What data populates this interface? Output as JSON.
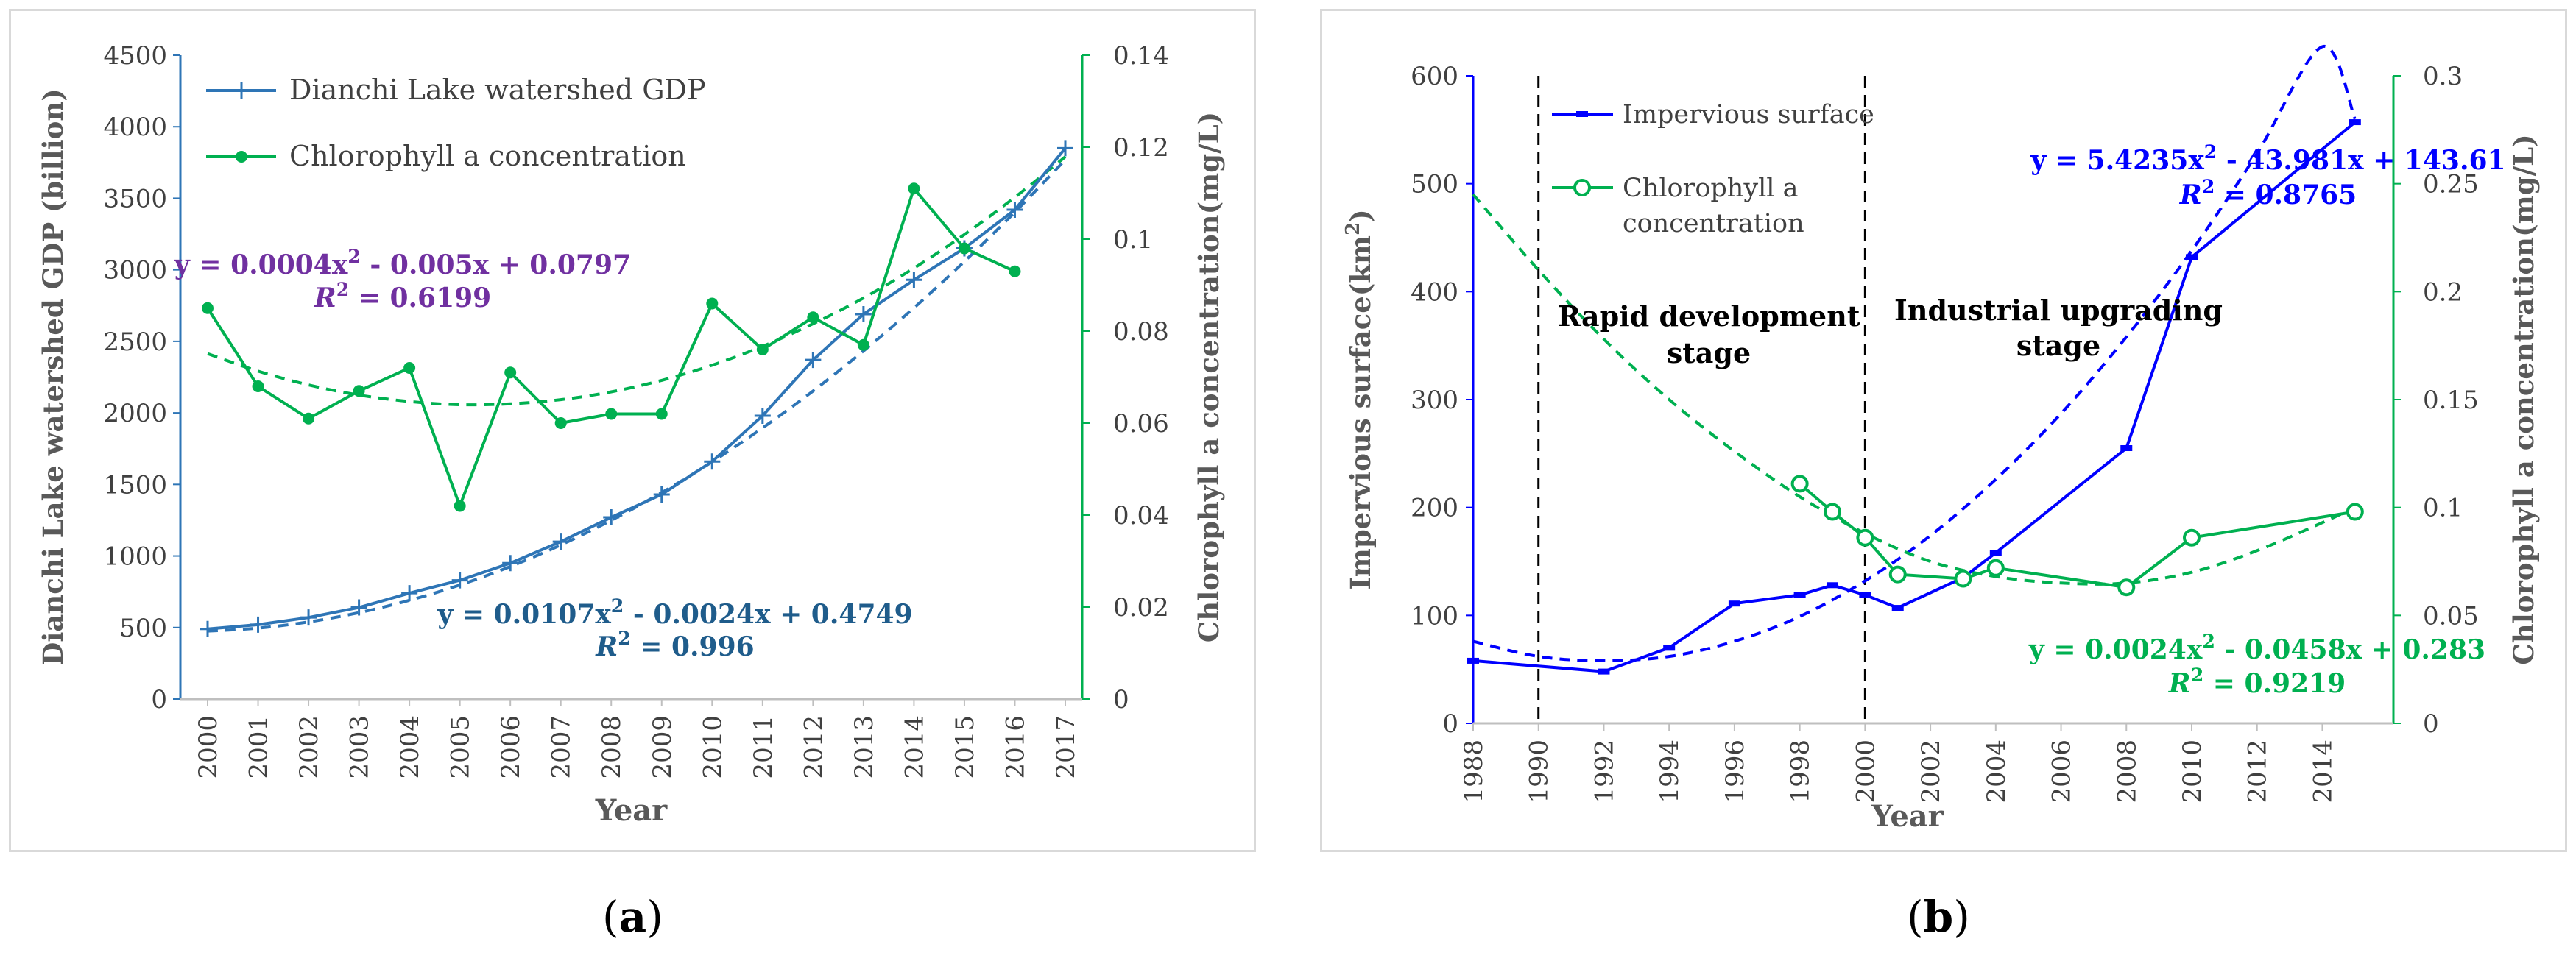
{
  "charts": [
    {
      "type": "line",
      "panel_label": "a",
      "xlabel": "Year",
      "ylabel_left": "Dianchi Lake watershed GDP (billion)",
      "ylabel_right": "Chlorophyll  a concentration(mg/L)",
      "x_ticks": [
        "2000",
        "2001",
        "2002",
        "2003",
        "2004",
        "2005",
        "2006",
        "2007",
        "2008",
        "2009",
        "2010",
        "2011",
        "2012",
        "2013",
        "2014",
        "2015",
        "2016",
        "2017"
      ],
      "y_left_ticks": [
        "0",
        "500",
        "1000",
        "1500",
        "2000",
        "2500",
        "3000",
        "3500",
        "4000",
        "4500"
      ],
      "y_right_ticks": [
        "0",
        "0.02",
        "0.04",
        "0.06",
        "0.08",
        "0.1",
        "0.12",
        "0.14"
      ],
      "legend": [
        "Dianchi Lake watershed GDP",
        "Chlorophyll a concentration"
      ],
      "annotations": [
        {
          "eq": "y = 0.0004x² - 0.005x + 0.0797",
          "r2": "R² = 0.6199",
          "color": "#7030a0"
        },
        {
          "eq": "y = 0.0107x² - 0.0024x + 0.4749",
          "r2": "R² = 0.996",
          "color": "#1f5c8b"
        }
      ]
    },
    {
      "type": "line",
      "panel_label": "b",
      "xlabel": "Year",
      "ylabel_left": "Impervious surface(km²)",
      "ylabel_right": "Chlorophyll a concentration(mg/L)",
      "x_ticks": [
        "1988",
        "1990",
        "1992",
        "1994",
        "1996",
        "1998",
        "2000",
        "2002",
        "2004",
        "2006",
        "2008",
        "2010",
        "2012",
        "2014"
      ],
      "y_left_ticks": [
        "0",
        "100",
        "200",
        "300",
        "400",
        "500",
        "600"
      ],
      "y_right_ticks": [
        "0",
        "0.05",
        "0.1",
        "0.15",
        "0.2",
        "0.25",
        "0.3"
      ],
      "legend": [
        "Impervious surface",
        "Chlorophyll a",
        "concentration"
      ],
      "stage_labels": [
        {
          "line1": "Rapid development",
          "line2": "stage"
        },
        {
          "line1": "Industrial upgrading",
          "line2": "stage"
        }
      ],
      "annotations": [
        {
          "eq": "y = 5.4235x² - 43.981x + 143.61",
          "r2": "R² = 0.8765",
          "color": "#0000ff"
        },
        {
          "eq": "y = 0.0024x² - 0.0458x + 0.283",
          "r2": "R² = 0.9219",
          "color": "#00b050"
        }
      ]
    }
  ],
  "chart_data": [
    {
      "type": "line",
      "title": "",
      "xlabel": "Year",
      "ylabel": "Dianchi Lake watershed GDP (billion)",
      "y2label": "Chlorophyll  a concentration(mg/L)",
      "ylim": [
        0,
        4500
      ],
      "y2lim": [
        0,
        0.14
      ],
      "x": [
        2000,
        2001,
        2002,
        2003,
        2004,
        2005,
        2006,
        2007,
        2008,
        2009,
        2010,
        2011,
        2012,
        2013,
        2014,
        2015,
        2016,
        2017
      ],
      "series": [
        {
          "name": "Dianchi Lake watershed GDP",
          "axis": "left",
          "color": "#2e75b6",
          "marker": "plus",
          "x": [
            2000,
            2001,
            2002,
            2003,
            2004,
            2005,
            2006,
            2007,
            2008,
            2009,
            2010,
            2011,
            2012,
            2013,
            2014,
            2015,
            2016,
            2017
          ],
          "values": [
            490,
            520,
            570,
            640,
            740,
            830,
            950,
            1100,
            1270,
            1430,
            1660,
            1980,
            2370,
            2690,
            2930,
            3150,
            3420,
            3850
          ]
        },
        {
          "name": "Chlorophyll a concentration",
          "axis": "right",
          "color": "#00b050",
          "marker": "circle",
          "x": [
            2000,
            2001,
            2002,
            2003,
            2004,
            2005,
            2006,
            2007,
            2008,
            2009,
            2010,
            2011,
            2012,
            2013,
            2014,
            2015,
            2016
          ],
          "values": [
            0.085,
            0.068,
            0.061,
            0.067,
            0.072,
            0.042,
            0.071,
            0.06,
            0.062,
            0.062,
            0.086,
            0.076,
            0.083,
            0.077,
            0.111,
            0.098,
            0.093
          ]
        }
      ],
      "trendlines": [
        {
          "series": "Dianchi Lake watershed GDP",
          "axis": "left",
          "color": "#2e75b6",
          "style": "dashed",
          "x": [
            2000,
            2001,
            2002,
            2003,
            2004,
            2005,
            2006,
            2007,
            2008,
            2009,
            2010,
            2011,
            2012,
            2013,
            2014,
            2015,
            2016,
            2017
          ],
          "values": [
            475,
            496,
            539,
            604,
            690,
            797,
            926,
            1077,
            1249,
            1443,
            1658,
            1895,
            2153,
            2433,
            2734,
            3058,
            3403,
            3769
          ]
        },
        {
          "series": "Chlorophyll a concentration",
          "axis": "right",
          "color": "#00b050",
          "style": "dashed",
          "x": [
            2000,
            2001,
            2002,
            2003,
            2004,
            2005,
            2006,
            2007,
            2008,
            2009,
            2010,
            2011,
            2012,
            2013,
            2014,
            2015,
            2016,
            2017
          ],
          "values": [
            0.0751,
            0.0713,
            0.0683,
            0.0661,
            0.0647,
            0.064,
            0.0642,
            0.0651,
            0.0668,
            0.0693,
            0.0726,
            0.0767,
            0.0816,
            0.0872,
            0.0937,
            0.101,
            0.1091,
            0.1179
          ]
        }
      ],
      "annotations": [
        "y = 0.0004x² - 0.005x + 0.0797",
        "R² = 0.6199",
        "y = 0.0107x² - 0.0024x + 0.4749",
        "R² = 0.996"
      ],
      "legend_position": "top-left",
      "grid": false
    },
    {
      "type": "line",
      "title": "",
      "xlabel": "Year",
      "ylabel": "Impervious surface(km²)",
      "y2label": "Chlorophyll a concentration(mg/L)",
      "xlim": [
        1988,
        2015.5
      ],
      "ylim": [
        0,
        600
      ],
      "y2lim": [
        0,
        0.3
      ],
      "series": [
        {
          "name": "Impervious surface",
          "axis": "left",
          "color": "#0000ff",
          "marker": "square",
          "x": [
            1988,
            1992,
            1994,
            1996,
            1998,
            1999,
            2000,
            2001,
            2003,
            2004,
            2008,
            2010,
            2015
          ],
          "values": [
            58,
            48,
            70,
            111,
            119,
            128,
            119,
            107,
            135,
            158,
            255,
            432,
            557
          ]
        },
        {
          "name": "Chlorophyll a concentration",
          "axis": "right",
          "color": "#00b050",
          "marker": "hollow-circle",
          "x": [
            1998,
            1999,
            2000,
            2001,
            2003,
            2004,
            2008,
            2010,
            2015
          ],
          "values": [
            0.111,
            0.098,
            0.086,
            0.069,
            0.067,
            0.072,
            0.063,
            0.086,
            0.098
          ]
        }
      ],
      "trendlines": [
        {
          "series": "Impervious surface",
          "axis": "left",
          "color": "#0000ff",
          "style": "dashed",
          "x": [
            1988,
            1990,
            1992,
            1994,
            1996,
            1998,
            2000,
            2002,
            2004,
            2006,
            2008,
            2010,
            2012,
            2014,
            2015
          ],
          "values": [
            76,
            62,
            58,
            62,
            76,
            99,
            132,
            174,
            226,
            287,
            358,
            438,
            528,
            627,
            560
          ]
        },
        {
          "series": "Chlorophyll a concentration",
          "axis": "right",
          "color": "#00b050",
          "style": "dashed",
          "x": [
            1988,
            1990,
            1992,
            1994,
            1996,
            1998,
            2000,
            2002,
            2004,
            2006,
            2008,
            2010,
            2012,
            2014,
            2015
          ],
          "values": [
            0.245,
            0.21,
            0.178,
            0.15,
            0.126,
            0.105,
            0.088,
            0.075,
            0.068,
            0.065,
            0.065,
            0.07,
            0.08,
            0.093,
            0.1
          ]
        }
      ],
      "reference_lines": [
        {
          "x": 1990,
          "style": "dashed",
          "color": "#000000"
        },
        {
          "x": 2000,
          "style": "dashed",
          "color": "#000000"
        }
      ],
      "annotations": [
        "Rapid development stage",
        "Industrial upgrading stage",
        "y = 5.4235x² - 43.981x + 143.61",
        "R² = 0.8765",
        "y = 0.0024x² - 0.0458x + 0.283",
        "R² = 0.9219"
      ],
      "legend_position": "top-left",
      "grid": false
    }
  ],
  "captions": {
    "a": "a",
    "b": "b"
  }
}
